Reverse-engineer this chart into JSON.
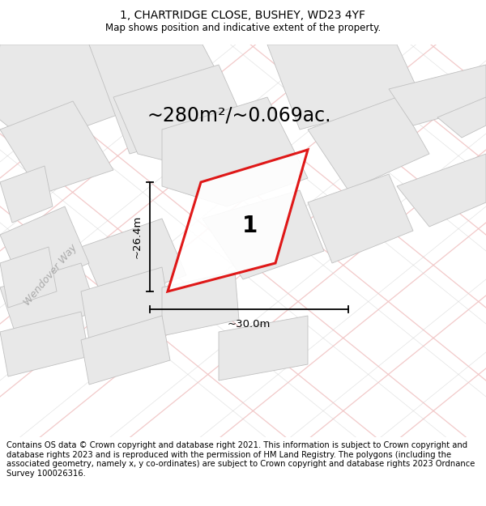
{
  "title": "1, CHARTRIDGE CLOSE, BUSHEY, WD23 4YF",
  "subtitle": "Map shows position and indicative extent of the property.",
  "area_label": "~280m²/~0.069ac.",
  "plot_number": "1",
  "width_label": "~30.0m",
  "height_label": "~26.4m",
  "street_label": "Wendover Way",
  "footer_text": "Contains OS data © Crown copyright and database right 2021. This information is subject to Crown copyright and database rights 2023 and is reproduced with the permission of HM Land Registry. The polygons (including the associated geometry, namely x, y co-ordinates) are subject to Crown copyright and database rights 2023 Ordnance Survey 100026316.",
  "bg_color": "#f8f8f8",
  "map_bg": "#f5f5f5",
  "plot_edge_color": "#dd0000",
  "parcel_fill": "#e8e8e8",
  "parcel_edge": "#c0c0c0",
  "road_pink": "#f0c0c0",
  "road_gray": "#d0d0d0",
  "title_fontsize": 10,
  "subtitle_fontsize": 8.5,
  "area_fontsize": 17,
  "plot_number_fontsize": 20,
  "dim_fontsize": 9.5,
  "street_fontsize": 9,
  "footer_fontsize": 7.2
}
